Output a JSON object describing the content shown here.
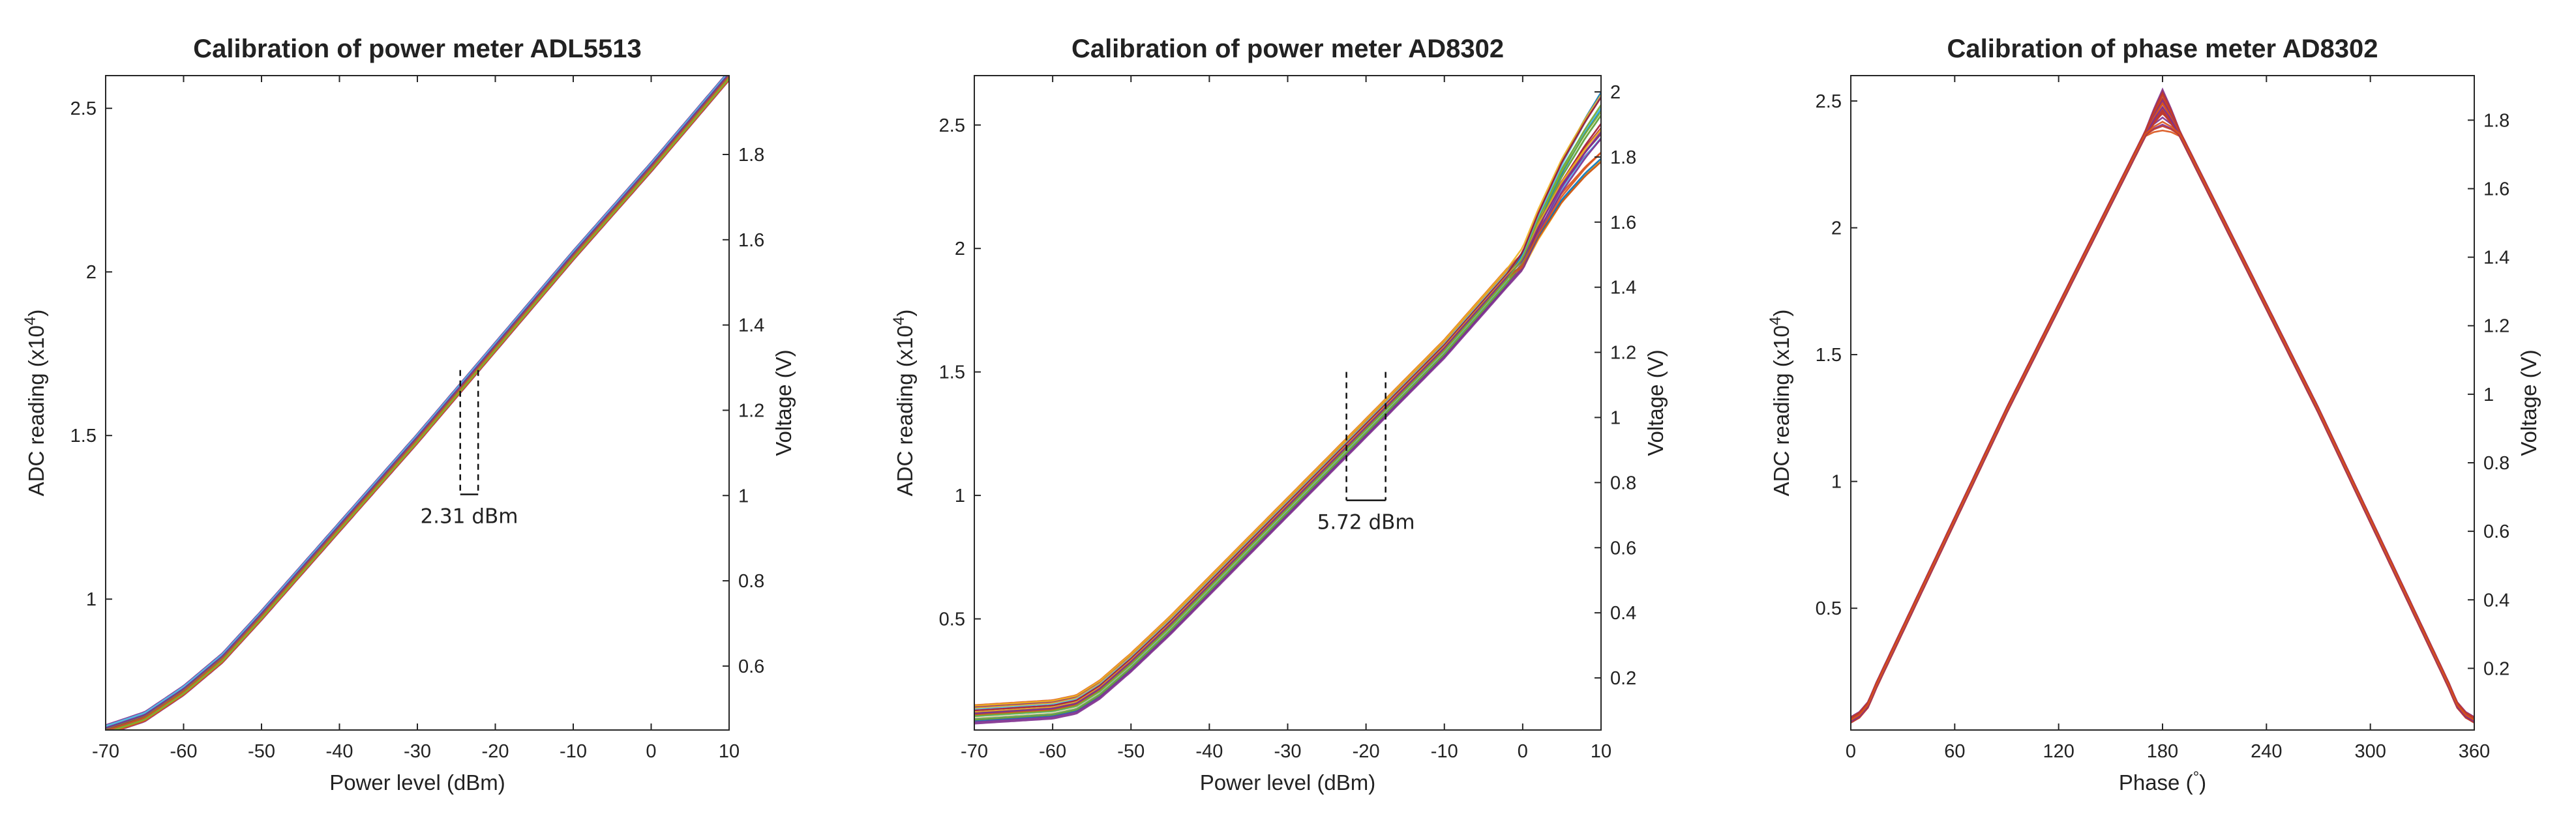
{
  "charts": [
    {
      "type": "line",
      "title": "Calibration of power meter ADL5513",
      "xlabel": "Power level (dBm)",
      "ylabel_left": "ADC reading (x10",
      "ylabel_left_sup": "4",
      "ylabel_left_end": ")",
      "ylabel_right": "Voltage (V)",
      "xlim": [
        -70,
        10
      ],
      "ylim_left": [
        0.6,
        2.6
      ],
      "ylim_right": [
        0.45,
        1.985
      ],
      "xticks": [
        -70,
        -60,
        -50,
        -40,
        -30,
        -20,
        -10,
        0,
        10
      ],
      "yticks_left": [
        1,
        1.5,
        2,
        2.5
      ],
      "yticks_right": [
        0.6,
        0.8,
        1,
        1.2,
        1.4,
        1.6,
        1.8
      ],
      "annotation": {
        "label": "2.31 dBm",
        "x1": -24.5,
        "x2": -22.2,
        "y_top": 1.7,
        "y_bottom": 1.32
      },
      "curve": {
        "x": [
          -70,
          -65,
          -60,
          -55,
          -50,
          -40,
          -30,
          -20,
          -10,
          0,
          10
        ],
        "y": [
          0.6,
          0.64,
          0.72,
          0.82,
          0.95,
          1.22,
          1.49,
          1.77,
          2.05,
          2.32,
          2.6
        ]
      },
      "spread": 0.015
    },
    {
      "type": "line",
      "title": "Calibration of power meter AD8302",
      "xlabel": "Power level (dBm)",
      "ylabel_left": "ADC reading (x10",
      "ylabel_left_sup": "4",
      "ylabel_left_end": ")",
      "ylabel_right": "Voltage (V)",
      "xlim": [
        -70,
        10
      ],
      "ylim_left": [
        0.05,
        2.7
      ],
      "ylim_right": [
        0.04,
        2.05
      ],
      "xticks": [
        -70,
        -60,
        -50,
        -40,
        -30,
        -20,
        -10,
        0,
        10
      ],
      "yticks_left": [
        0.5,
        1,
        1.5,
        2,
        2.5
      ],
      "yticks_right": [
        0.2,
        0.4,
        0.6,
        0.8,
        1,
        1.2,
        1.4,
        1.6,
        1.8,
        2
      ],
      "annotation": {
        "label": "5.72 dBm",
        "x1": -22.5,
        "x2": -17.5,
        "y_top": 1.5,
        "y_bottom": 0.98
      },
      "curve": {
        "x": [
          -70,
          -65,
          -60,
          -57,
          -54,
          -50,
          -45,
          -40,
          -30,
          -20,
          -10,
          0,
          2,
          5,
          8,
          10
        ],
        "y": [
          0.12,
          0.13,
          0.14,
          0.16,
          0.22,
          0.33,
          0.48,
          0.64,
          0.96,
          1.28,
          1.6,
          1.96,
          2.1,
          2.28,
          2.42,
          2.5
        ]
      },
      "spread": 0.045,
      "top_spread": 0.15
    },
    {
      "type": "line",
      "title": "Calibration of phase meter AD8302",
      "xlabel": "Phase (",
      "xlabel_sup": "°",
      "xlabel_end": ")",
      "ylabel_left": "ADC reading (x10",
      "ylabel_left_sup": "4",
      "ylabel_left_end": ")",
      "ylabel_right": "Voltage (V)",
      "xlim": [
        0,
        360
      ],
      "ylim_left": [
        0.02,
        2.6
      ],
      "ylim_right": [
        0.02,
        1.93
      ],
      "xticks": [
        0,
        60,
        120,
        180,
        240,
        300,
        360
      ],
      "yticks_left": [
        0.5,
        1,
        1.5,
        2,
        2.5
      ],
      "yticks_right": [
        0.2,
        0.4,
        0.6,
        0.8,
        1,
        1.2,
        1.4,
        1.6,
        1.8
      ],
      "curve": {
        "x": [
          0,
          5,
          10,
          15,
          90,
          170,
          175,
          180,
          185,
          190,
          270,
          345,
          350,
          355,
          360
        ],
        "y": [
          0.06,
          0.08,
          0.12,
          0.2,
          1.28,
          2.37,
          2.44,
          2.5,
          2.44,
          2.37,
          1.28,
          0.2,
          0.12,
          0.08,
          0.06
        ]
      },
      "spread": 0.012
    }
  ]
}
